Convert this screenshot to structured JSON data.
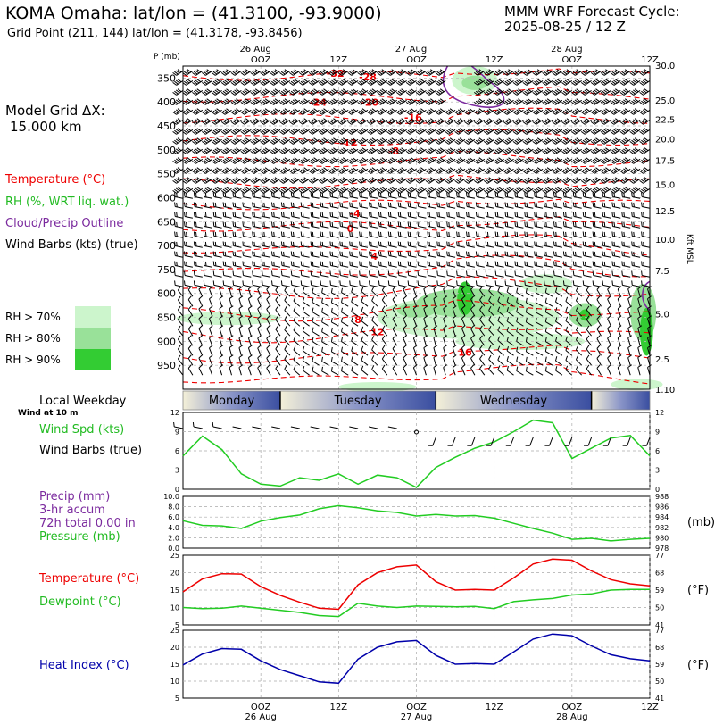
{
  "header": {
    "station_title": "KOMA Omaha:  lat/lon = (41.3100, -93.9000)",
    "grid_point": "Grid Point (211, 144) lat/lon = (41.3178, -93.8456)",
    "model_title": "MMM WRF Forecast Cycle:",
    "cycle": "2025-08-25 / 12  Z"
  },
  "legend": {
    "grid_label": "Model Grid ΔX:",
    "grid_value": "15.000 km",
    "temperature": "Temperature (°C)",
    "rh": "RH (%, WRT liq. wat.)",
    "cloud": "Cloud/Precip Outline",
    "wind": "Wind Barbs (kts) (true)",
    "rh70": "RH > 70%",
    "rh80": "RH > 80%",
    "rh90": "RH > 90%",
    "local_weekday": "Local Weekday",
    "wind_10m": "Wind at 10 m",
    "wind_spd": "Wind Spd (kts)",
    "wind_barbs": "Wind Barbs (true)",
    "precip": "Precip (mm)",
    "accum": "3-hr accum",
    "total": "72h total 0.00 in",
    "pressure": "Pressure (mb)",
    "temp2": "Temperature (°C)",
    "dewpoint": "Dewpoint (°C)",
    "heat_index": "Heat Index (°C)",
    "unit_mb": "(mb)",
    "unit_f1": "(°F)",
    "unit_f2": "(°F)",
    "p_axis": "P (mb)",
    "kft": "Kft MSL"
  },
  "colors": {
    "temperature": "#ee0000",
    "rh": "#22cc22",
    "cloud": "#7b2a9e",
    "wind": "#000000",
    "dewpoint": "#22cc22",
    "heat_index": "#0000aa",
    "rh70": "#ccf5cc",
    "rh80": "#99e199",
    "rh90": "#33cc33"
  },
  "chart_data": {
    "type": "line",
    "time_axis_top": [
      {
        "hours": 12,
        "label": "OOZ",
        "date": "26 Aug"
      },
      {
        "hours": 24,
        "label": "12Z",
        "date": ""
      },
      {
        "hours": 36,
        "label": "OOZ",
        "date": "27 Aug"
      },
      {
        "hours": 48,
        "label": "12Z",
        "date": ""
      },
      {
        "hours": 60,
        "label": "OOZ",
        "date": "28 Aug"
      },
      {
        "hours": 72,
        "label": "12Z",
        "date": ""
      }
    ],
    "time_axis_bottom": [
      {
        "hours": 12,
        "label": "OOZ",
        "date": "26 Aug"
      },
      {
        "hours": 24,
        "label": "12Z",
        "date": ""
      },
      {
        "hours": 36,
        "label": "OOZ",
        "date": "27 Aug"
      },
      {
        "hours": 48,
        "label": "12Z",
        "date": ""
      },
      {
        "hours": 60,
        "label": "OOZ",
        "date": "28 Aug"
      },
      {
        "hours": 72,
        "label": "12Z",
        "date": ""
      }
    ],
    "weekdays": [
      {
        "name": "Monday",
        "start": 0,
        "end": 15
      },
      {
        "name": "Tuesday",
        "start": 15,
        "end": 39
      },
      {
        "name": "Wednesday",
        "start": 39,
        "end": 63
      },
      {
        "name": "",
        "start": 63,
        "end": 72
      }
    ],
    "cross_section": {
      "pressure_ticks": [
        350,
        400,
        450,
        500,
        550,
        600,
        650,
        700,
        750,
        800,
        850,
        900,
        950
      ],
      "height_ticks": [
        {
          "label": "30.0",
          "p": 323
        },
        {
          "label": "25.0",
          "p": 396
        },
        {
          "label": "22.5",
          "p": 436
        },
        {
          "label": "20.0",
          "p": 477
        },
        {
          "label": "17.5",
          "p": 522
        },
        {
          "label": "15.0",
          "p": 572
        },
        {
          "label": "12.5",
          "p": 627
        },
        {
          "label": "10.0",
          "p": 687
        },
        {
          "label": "7.5",
          "p": 752
        },
        {
          "label": "5.0",
          "p": 842
        },
        {
          "label": "2.5",
          "p": 937
        },
        {
          "label": "1.10",
          "p": 1000
        }
      ],
      "temperature_labels": [
        {
          "text": "-32",
          "hours": 23.5,
          "p": 347
        },
        {
          "text": "-28",
          "hours": 28.5,
          "p": 355
        },
        {
          "text": "-24",
          "hours": 20.8,
          "p": 408
        },
        {
          "text": "-20",
          "hours": 28.8,
          "p": 408
        },
        {
          "text": "-16",
          "hours": 35.5,
          "p": 440
        },
        {
          "text": "-12",
          "hours": 25.5,
          "p": 493
        },
        {
          "text": "-8",
          "hours": 32.5,
          "p": 510
        },
        {
          "text": "-4",
          "hours": 26.5,
          "p": 640
        },
        {
          "text": "0",
          "hours": 25.8,
          "p": 672
        },
        {
          "text": "4",
          "hours": 29.5,
          "p": 730
        },
        {
          "text": "8",
          "hours": 27.0,
          "p": 862
        },
        {
          "text": "12",
          "hours": 30.0,
          "p": 887
        },
        {
          "text": "16",
          "hours": 43.5,
          "p": 930
        }
      ]
    },
    "wind_speed": {
      "ylabel": "",
      "ylim": [
        0,
        12
      ],
      "ticks": [
        0,
        3,
        6,
        9,
        12
      ],
      "hours": [
        0,
        3,
        6,
        9,
        12,
        15,
        18,
        21,
        24,
        27,
        30,
        33,
        36,
        39,
        42,
        45,
        48,
        51,
        54,
        57,
        60,
        63,
        66,
        69,
        72
      ],
      "values": [
        5.2,
        8.3,
        6.2,
        2.4,
        0.8,
        0.5,
        1.8,
        1.4,
        2.4,
        0.8,
        2.2,
        1.8,
        0.3,
        3.4,
        5.0,
        6.4,
        7.4,
        9.0,
        10.8,
        10.4,
        4.8,
        6.4,
        8.0,
        8.4,
        5.2
      ]
    },
    "pressure": {
      "ylim": [
        978,
        988
      ],
      "left_ticks": [
        0.0,
        2.0,
        4.0,
        6.0,
        8.0,
        10.0
      ],
      "right_ticks": [
        978,
        980,
        982,
        984,
        986,
        988
      ],
      "hours": [
        0,
        3,
        6,
        9,
        12,
        15,
        18,
        21,
        24,
        27,
        30,
        33,
        36,
        39,
        42,
        45,
        48,
        51,
        54,
        57,
        60,
        63,
        66,
        69,
        72
      ],
      "values": [
        983.3,
        982.4,
        982.3,
        981.8,
        983.2,
        983.9,
        984.4,
        985.6,
        986.2,
        985.8,
        985.2,
        984.9,
        984.2,
        984.5,
        984.2,
        984.3,
        983.8,
        982.8,
        981.8,
        980.9,
        979.7,
        979.9,
        979.4,
        979.7,
        979.9
      ],
      "precip_values": [
        0,
        0,
        0,
        0,
        0,
        0,
        0,
        0,
        0,
        0,
        0,
        0,
        0,
        0,
        0,
        0,
        0,
        0,
        0,
        0,
        0,
        0,
        0,
        0,
        0
      ]
    },
    "temperature_dewpoint": {
      "ylim": [
        5,
        25
      ],
      "left_ticks": [
        5,
        10,
        15,
        20,
        25
      ],
      "right_ticks": [
        {
          "c": 5,
          "f": "41"
        },
        {
          "c": 10,
          "f": "50"
        },
        {
          "c": 15,
          "f": "59"
        },
        {
          "c": 20,
          "f": "68"
        },
        {
          "c": 25,
          "f": "77"
        }
      ],
      "hours": [
        0,
        3,
        6,
        9,
        12,
        15,
        18,
        21,
        24,
        27,
        30,
        33,
        36,
        39,
        42,
        45,
        48,
        51,
        54,
        57,
        60,
        63,
        66,
        69,
        72
      ],
      "temperature": [
        14.5,
        18.2,
        19.7,
        19.6,
        16.0,
        13.5,
        11.5,
        9.8,
        9.5,
        16.5,
        20.0,
        21.7,
        22.2,
        17.4,
        15.0,
        15.2,
        15.0,
        18.5,
        22.5,
        23.9,
        23.6,
        20.5,
        18.0,
        16.8,
        16.2
      ],
      "dewpoint": [
        10.0,
        9.7,
        9.8,
        10.4,
        9.8,
        9.2,
        8.6,
        7.7,
        7.4,
        11.2,
        10.4,
        10.0,
        10.4,
        10.3,
        10.2,
        10.3,
        9.7,
        11.7,
        12.2,
        12.6,
        13.6,
        13.9,
        15.0,
        15.2,
        15.2
      ]
    },
    "heat_index": {
      "ylim": [
        5,
        25
      ],
      "left_ticks": [
        5,
        10,
        15,
        20,
        25
      ],
      "right_ticks": [
        {
          "c": 5,
          "f": "41"
        },
        {
          "c": 10,
          "f": "50"
        },
        {
          "c": 15,
          "f": "59"
        },
        {
          "c": 20,
          "f": "68"
        },
        {
          "c": 25,
          "f": "77"
        }
      ],
      "hours": [
        0,
        3,
        6,
        9,
        12,
        15,
        18,
        21,
        24,
        27,
        30,
        33,
        36,
        39,
        42,
        45,
        48,
        51,
        54,
        57,
        60,
        63,
        66,
        69,
        72
      ],
      "values": [
        14.8,
        18.0,
        19.6,
        19.4,
        16.0,
        13.4,
        11.6,
        9.8,
        9.4,
        16.5,
        20.0,
        21.6,
        22.0,
        17.6,
        15.0,
        15.2,
        15.0,
        18.6,
        22.4,
        23.9,
        23.4,
        20.4,
        17.8,
        16.6,
        16.0
      ]
    }
  }
}
